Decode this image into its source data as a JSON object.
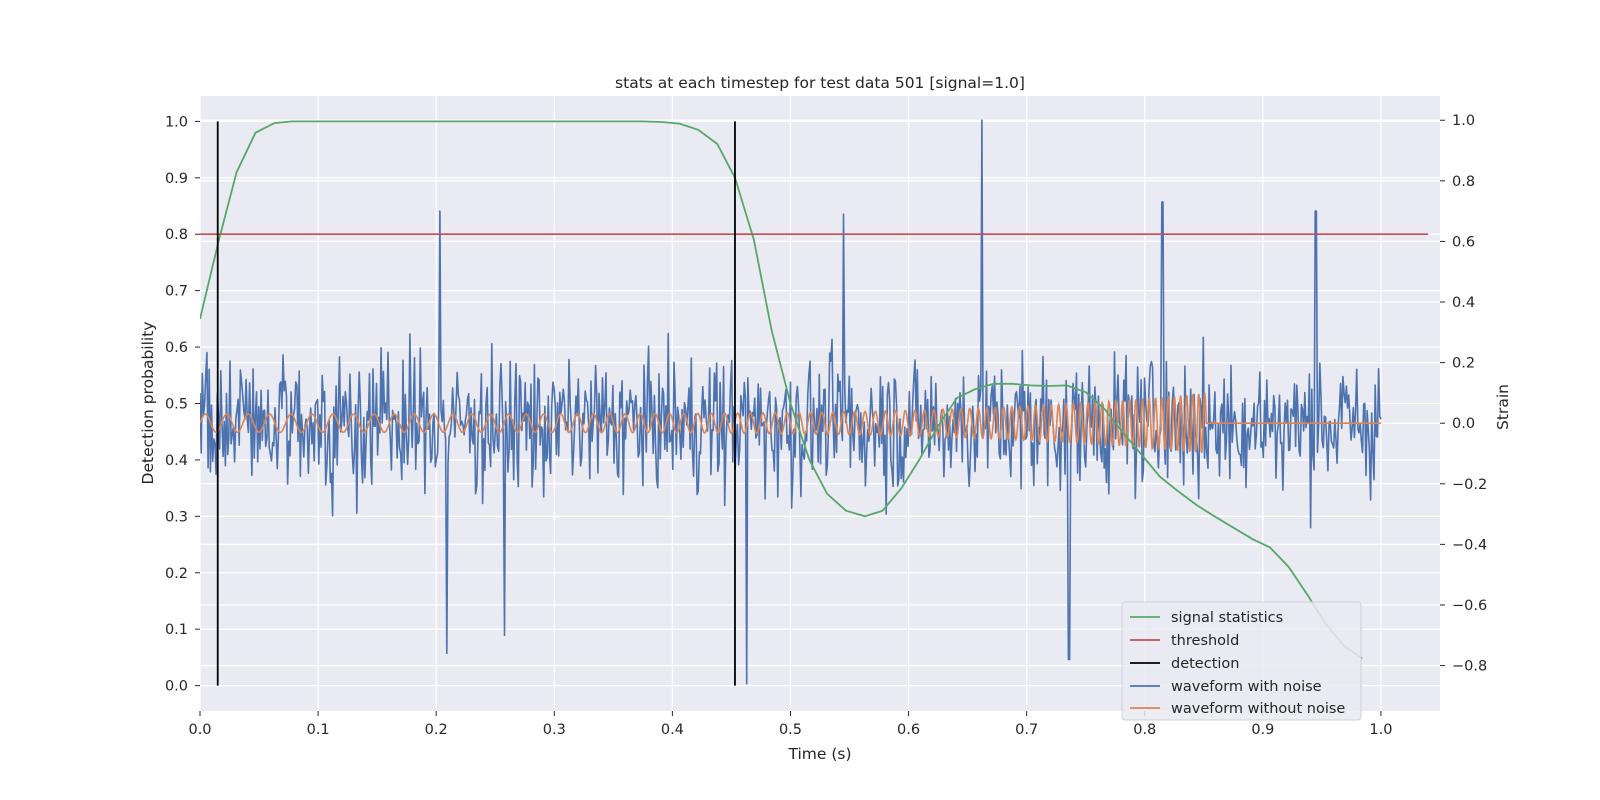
{
  "chart_data": {
    "type": "line",
    "title": "stats at each timestep for test data 501 [signal=1.0]",
    "xlabel": "Time (s)",
    "ylabel": "Detection probability",
    "ylabel_right": "Strain",
    "xlim": [
      0.0,
      1.05
    ],
    "ylim": [
      -0.045,
      1.045
    ],
    "ylim_right": [
      -0.95,
      1.08
    ],
    "grid": true,
    "x_ticks": [
      "0.0",
      "0.1",
      "0.2",
      "0.3",
      "0.4",
      "0.5",
      "0.6",
      "0.7",
      "0.8",
      "0.9",
      "1.0"
    ],
    "y_ticks": [
      "0.0",
      "0.1",
      "0.2",
      "0.3",
      "0.4",
      "0.5",
      "0.6",
      "0.7",
      "0.8",
      "0.9",
      "1.0"
    ],
    "y_ticks_right": [
      "−0.8",
      "−0.6",
      "−0.4",
      "−0.2",
      "0.0",
      "0.2",
      "0.4",
      "0.6",
      "0.8",
      "1.0"
    ],
    "legend_position": "lower right",
    "legend": [
      {
        "label": "signal statistics",
        "color": "#55a868"
      },
      {
        "label": "threshold",
        "color": "#c44e52"
      },
      {
        "label": "detection",
        "color": "#000000"
      },
      {
        "label": "waveform with noise",
        "color": "#4c72b0"
      },
      {
        "label": "waveform without noise",
        "color": "#dd8452"
      }
    ],
    "series": [
      {
        "name": "signal statistics",
        "axis": "left",
        "color": "#55a868",
        "x": [
          0.0,
          0.016,
          0.031,
          0.047,
          0.063,
          0.078,
          0.094,
          0.25,
          0.375,
          0.391,
          0.406,
          0.422,
          0.438,
          0.453,
          0.469,
          0.484,
          0.5,
          0.516,
          0.531,
          0.547,
          0.563,
          0.578,
          0.594,
          0.609,
          0.625,
          0.641,
          0.656,
          0.672,
          0.688,
          0.703,
          0.719,
          0.734,
          0.75,
          0.766,
          0.781,
          0.797,
          0.813,
          0.828,
          0.844,
          0.859,
          0.875,
          0.891,
          0.906,
          0.922,
          0.938,
          0.953,
          0.969,
          0.984
        ],
        "values": [
          0.65,
          0.79,
          0.91,
          0.98,
          0.997,
          1.0,
          1.0,
          1.0,
          1.0,
          0.999,
          0.996,
          0.985,
          0.96,
          0.9,
          0.79,
          0.63,
          0.5,
          0.4,
          0.34,
          0.31,
          0.3,
          0.31,
          0.35,
          0.4,
          0.46,
          0.51,
          0.525,
          0.535,
          0.535,
          0.532,
          0.531,
          0.532,
          0.52,
          0.49,
          0.45,
          0.41,
          0.37,
          0.345,
          0.32,
          0.3,
          0.28,
          0.26,
          0.245,
          0.21,
          0.16,
          0.11,
          0.07,
          0.048
        ]
      },
      {
        "name": "threshold",
        "axis": "left",
        "color": "#c44e52",
        "x": [
          0.0,
          1.04
        ],
        "values": [
          0.8,
          0.8
        ]
      },
      {
        "name": "detection",
        "axis": "left",
        "color": "#000000",
        "x": [
          0.015,
          0.453
        ],
        "values": [
          1.0,
          1.0
        ]
      },
      {
        "name": "waveform with noise",
        "axis": "right",
        "color": "#4c72b0",
        "x_start": 0.0,
        "x_end": 1.0,
        "n_points": 1025,
        "noise_std": 0.22,
        "spikes": [
          {
            "x": 0.203,
            "value": 0.7
          },
          {
            "x": 0.209,
            "value": -0.76
          },
          {
            "x": 0.258,
            "value": -0.7
          },
          {
            "x": 0.463,
            "value": -0.86
          },
          {
            "x": 0.545,
            "value": 0.69
          },
          {
            "x": 0.662,
            "value": 1.0
          },
          {
            "x": 0.736,
            "value": -0.78
          },
          {
            "x": 0.815,
            "value": 0.73
          },
          {
            "x": 0.945,
            "value": 0.7
          }
        ]
      },
      {
        "name": "waveform without noise",
        "axis": "right",
        "color": "#dd8452",
        "x_start": 0.0,
        "x_end": 1.0,
        "chirp_end": 0.852,
        "amplitude_start": 0.03,
        "amplitude_peak": 0.1,
        "start_frequency_hz": 55,
        "end_frequency_hz": 200
      }
    ]
  }
}
